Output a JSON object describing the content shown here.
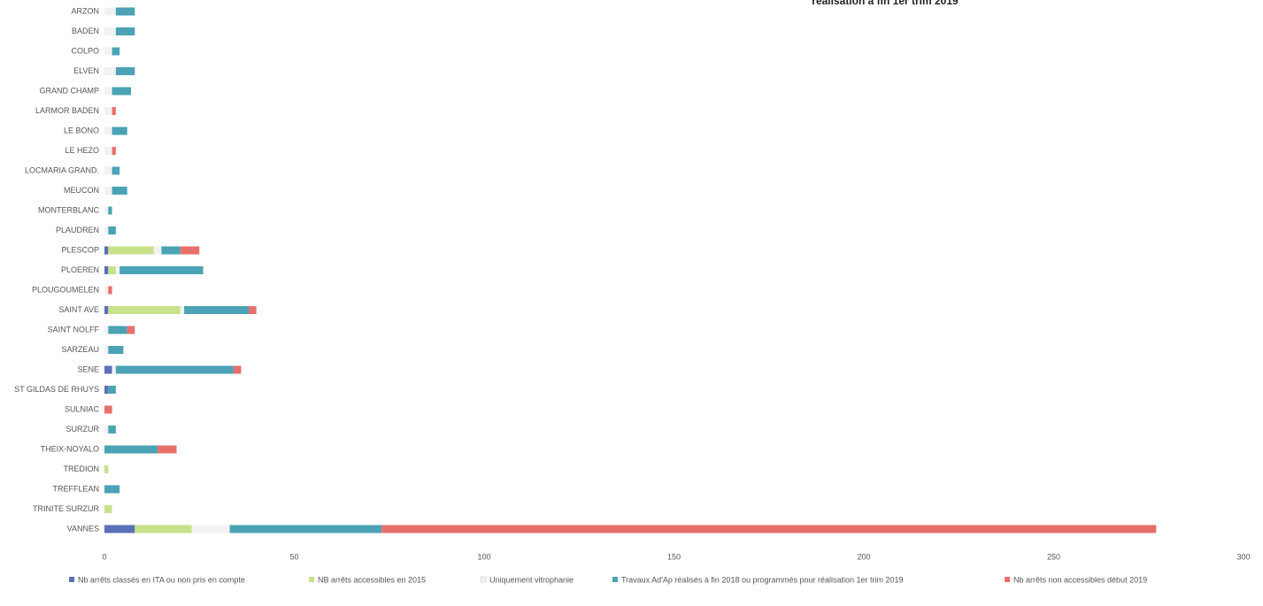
{
  "chart_data": {
    "type": "stacked_barh",
    "title": "réalisation à fin 1er trim 2019",
    "categories": [
      "ARZON",
      "BADEN",
      "COLPO",
      "ELVEN",
      "GRAND CHAMP",
      "LARMOR BADEN",
      "LE BONO",
      "LE HEZO",
      "LOCMARIA GRAND.",
      "MEUCON",
      "MONTERBLANC",
      "PLAUDREN",
      "PLESCOP",
      "PLOEREN",
      "PLOUGOUMELEN",
      "SAINT AVE",
      "SAINT NOLFF",
      "SARZEAU",
      "SENE",
      "ST GILDAS DE RHUYS",
      "SULNIAC",
      "SURZUR",
      "THEIX-NOYALO",
      "TREDION",
      "TREFFLEAN",
      "TRINITE SURZUR",
      "VANNES"
    ],
    "series": [
      {
        "name": "Nb arrêts classés en ITA ou non pris en compte",
        "color": "#5b6fb5",
        "values": [
          0,
          0,
          0,
          0,
          0,
          0,
          0,
          0,
          0,
          0,
          0,
          0,
          1,
          1,
          0,
          1,
          0,
          0,
          2,
          1,
          0,
          0,
          0,
          0,
          0,
          0,
          8
        ]
      },
      {
        "name": "NB arrêts accessibles en 2015",
        "color": "#c8e28c",
        "values": [
          0,
          0,
          0,
          0,
          0,
          0,
          0,
          0,
          0,
          0,
          0,
          0,
          12,
          2,
          0,
          19,
          0,
          0,
          0,
          0,
          0,
          0,
          0,
          1,
          0,
          2,
          15
        ]
      },
      {
        "name": "Uniquement vitrophanie",
        "color": "#f2f2f2",
        "values": [
          3,
          3,
          2,
          3,
          2,
          2,
          2,
          2,
          2,
          2,
          1,
          1,
          2,
          1,
          1,
          1,
          1,
          1,
          1,
          0,
          0,
          1,
          0,
          0,
          0,
          0,
          10
        ]
      },
      {
        "name": "Travaux Ad'Ap réalisés à fin 2018 ou programmés pour réalisation 1er trim 2019",
        "color": "#4ba3b5",
        "values": [
          5,
          5,
          2,
          5,
          5,
          0,
          4,
          0,
          2,
          4,
          1,
          2,
          5,
          22,
          0,
          17,
          5,
          4,
          31,
          2,
          0,
          2,
          14,
          0,
          4,
          0,
          40
        ]
      },
      {
        "name": "Nb arrêts  non accessibles début 2019",
        "color": "#e8706a",
        "values": [
          0,
          0,
          0,
          0,
          0,
          1,
          0,
          1,
          0,
          0,
          0,
          0,
          5,
          0,
          1,
          2,
          2,
          0,
          2,
          0,
          2,
          0,
          5,
          0,
          0,
          0,
          204
        ]
      }
    ],
    "xlim": [
      0,
      300
    ],
    "xticks": [
      0,
      50,
      100,
      150,
      200,
      250,
      300
    ]
  }
}
